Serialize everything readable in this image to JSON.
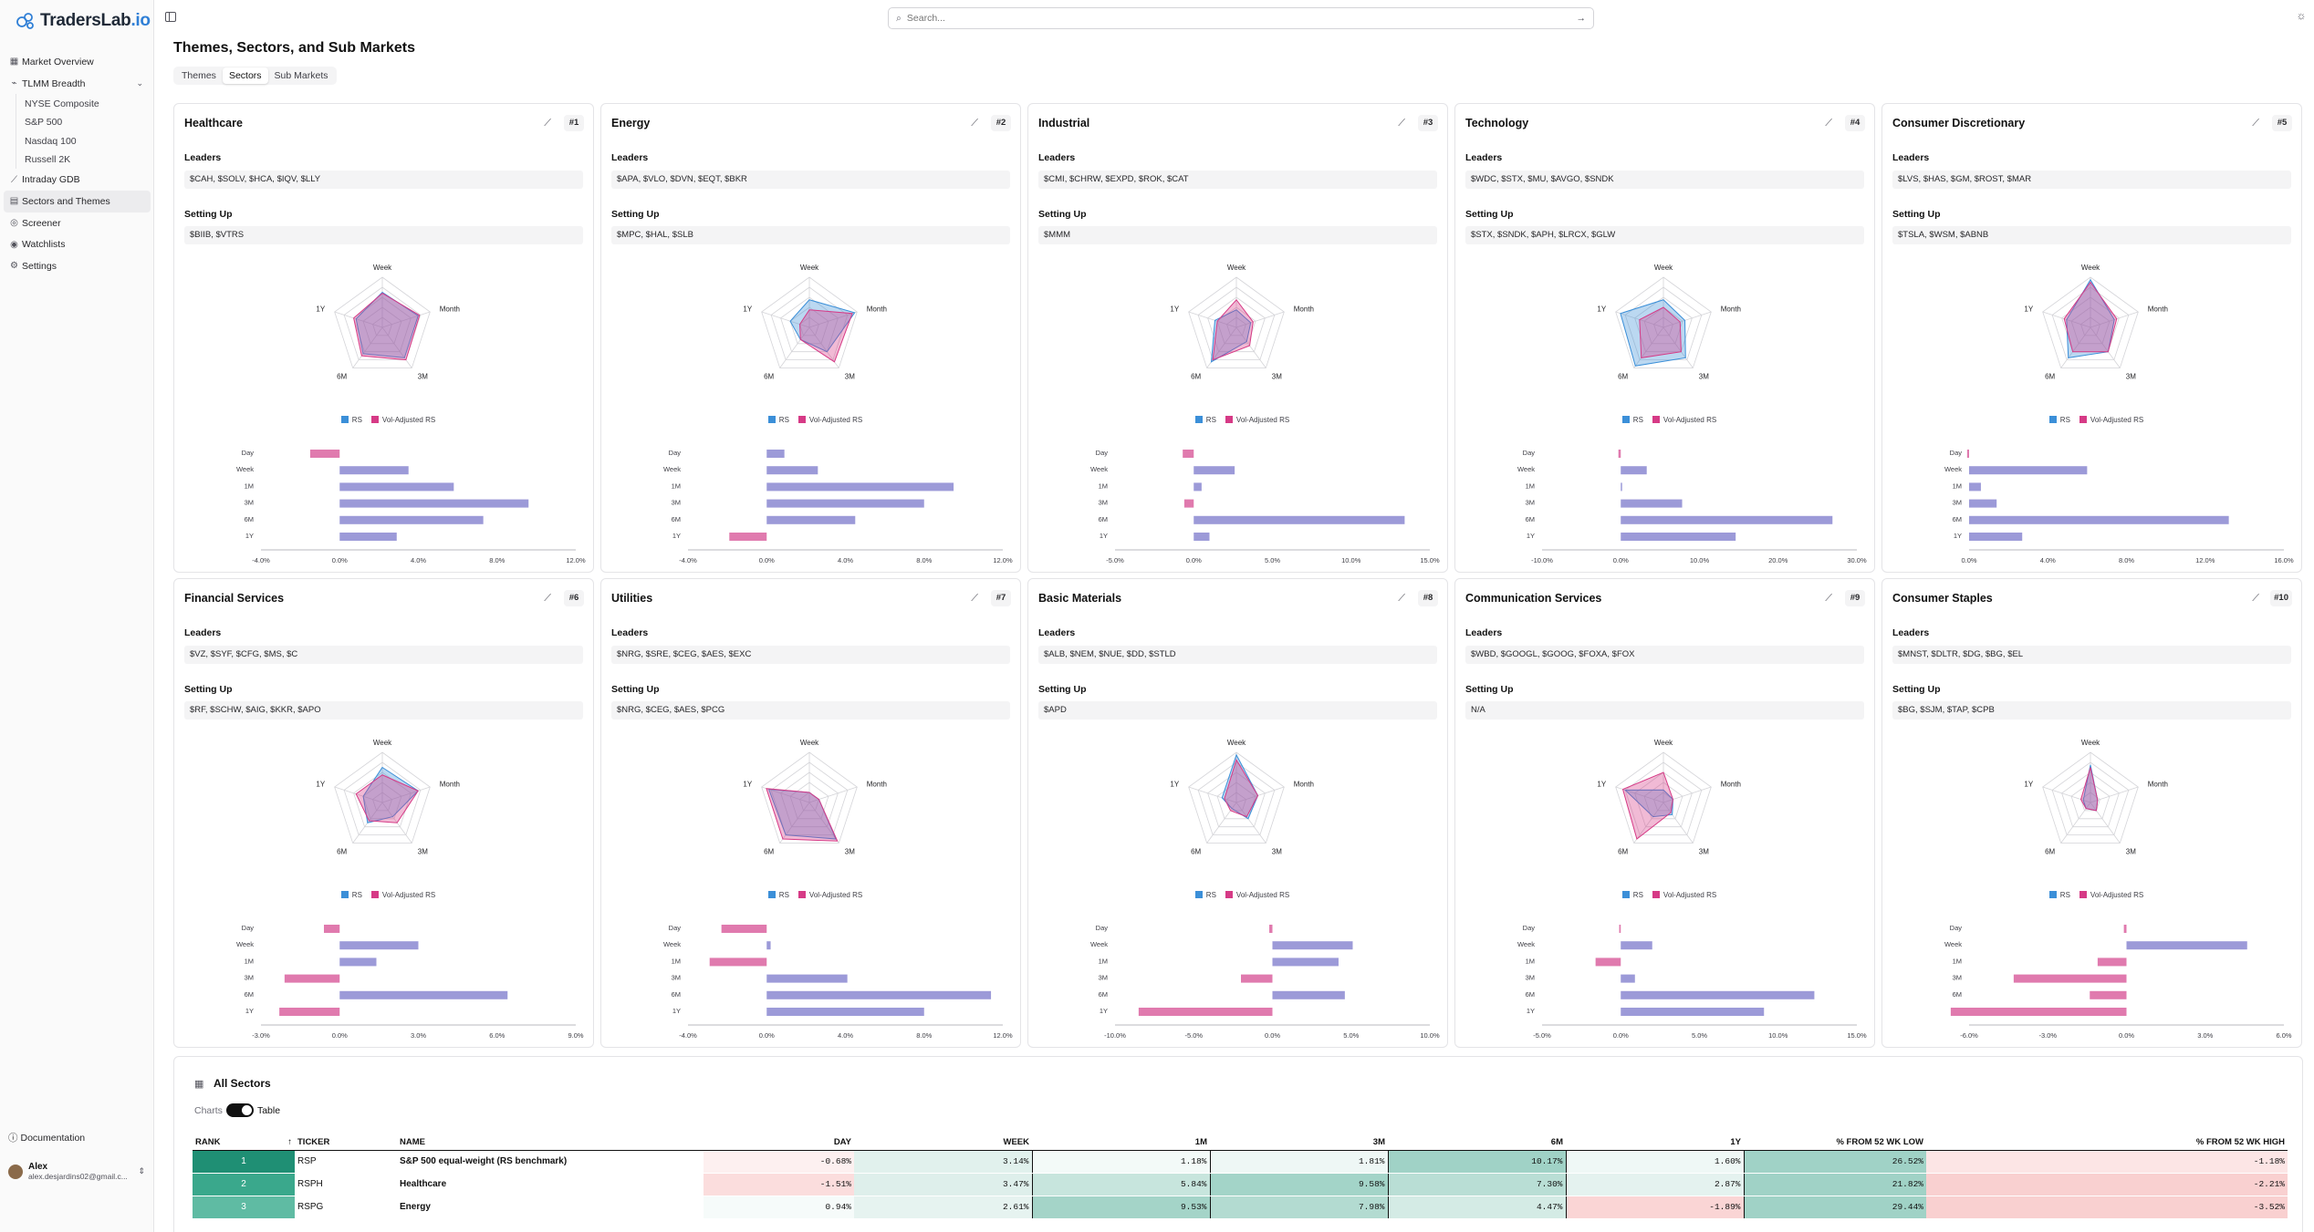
{
  "app": {
    "name_main": "TradersLab",
    "name_tld": ".io"
  },
  "search": {
    "placeholder": "Search..."
  },
  "sidebar": {
    "items": [
      {
        "label": "Market Overview",
        "icon": "grid-icon"
      },
      {
        "label": "TLMM Breadth",
        "icon": "activity-icon"
      },
      {
        "label": "Intraday GDB",
        "icon": "chart-line-icon"
      },
      {
        "label": "Sectors and Themes",
        "icon": "list-icon"
      },
      {
        "label": "Screener",
        "icon": "filter-icon"
      },
      {
        "label": "Watchlists",
        "icon": "eye-icon"
      },
      {
        "label": "Settings",
        "icon": "gear-icon"
      }
    ],
    "sub_items": [
      "NYSE Composite",
      "S&P 500",
      "Nasdaq 100",
      "Russell 2K"
    ],
    "documentation": "Documentation",
    "user": {
      "name": "Alex",
      "email": "alex.desjardins02@gmail.c..."
    }
  },
  "page": {
    "title": "Themes, Sectors, and Sub Markets",
    "tabs": [
      "Themes",
      "Sectors",
      "Sub Markets"
    ],
    "active_tab": "Sectors"
  },
  "card_labels": {
    "leaders": "Leaders",
    "setting_up": "Setting Up",
    "legend_rs": "RS",
    "legend_vol": "Vol-Adjusted RS",
    "axes": [
      "Week",
      "Month",
      "3M",
      "6M",
      "1Y"
    ],
    "bar_rows": [
      "Day",
      "Week",
      "1M",
      "3M",
      "6M",
      "1Y"
    ]
  },
  "colors": {
    "rs": "#3b8fd8",
    "vol": "#d63a86",
    "bar_pos": "#9c9ad8",
    "bar_neg": "#e07aae"
  },
  "cards": [
    {
      "name": "Healthcare",
      "rank": "#1",
      "leaders": "$CAH, $SOLV, $HCA, $IQV, $LLY",
      "setting_up": "$BIIB, $VTRS",
      "rs": [
        0.7,
        0.75,
        0.75,
        0.65,
        0.55
      ],
      "vol": [
        0.68,
        0.78,
        0.8,
        0.7,
        0.6
      ],
      "bars": [
        -1.5,
        3.5,
        5.8,
        9.6,
        7.3,
        2.9
      ],
      "ticks": [
        "-4.0%",
        "0.0%",
        "4.0%",
        "8.0%",
        "12.0%"
      ],
      "tmin": -4,
      "tmax": 12
    },
    {
      "name": "Energy",
      "rank": "#2",
      "leaders": "$APA, $VLO, $DVN, $EQT, $BKR",
      "setting_up": "$MPC, $HAL, $SLB",
      "rs": [
        0.55,
        0.95,
        0.6,
        0.3,
        0.4
      ],
      "vol": [
        0.35,
        0.9,
        0.85,
        0.3,
        0.2
      ],
      "bars": [
        0.9,
        2.6,
        9.5,
        8.0,
        4.5,
        -1.9
      ],
      "ticks": [
        "-4.0%",
        "0.0%",
        "4.0%",
        "8.0%",
        "12.0%"
      ],
      "tmin": -4,
      "tmax": 12
    },
    {
      "name": "Industrial",
      "rank": "#3",
      "leaders": "$CMI, $CHRW, $EXPD, $ROK, $CAT",
      "setting_up": "$MMM",
      "rs": [
        0.35,
        0.3,
        0.35,
        0.85,
        0.45
      ],
      "vol": [
        0.55,
        0.35,
        0.45,
        0.8,
        0.4
      ],
      "bars": [
        -0.7,
        2.6,
        0.5,
        -0.6,
        13.4,
        1.0
      ],
      "ticks": [
        "-5.0%",
        "0.0%",
        "5.0%",
        "10.0%",
        "15.0%"
      ],
      "tmin": -5,
      "tmax": 15
    },
    {
      "name": "Technology",
      "rank": "#4",
      "leaders": "$WDC, $STX, $MU, $AVGO, $SNDK",
      "setting_up": "$STX, $SNDK, $APH, $LRCX, $GLW",
      "rs": [
        0.55,
        0.45,
        0.75,
        0.95,
        0.9
      ],
      "vol": [
        0.4,
        0.35,
        0.6,
        0.75,
        0.5
      ],
      "bars": [
        -0.3,
        3.3,
        0.1,
        7.8,
        26.9,
        14.6
      ],
      "ticks": [
        "-10.0%",
        "0.0%",
        "10.0%",
        "20.0%",
        "30.0%"
      ],
      "tmin": -10,
      "tmax": 30
    },
    {
      "name": "Consumer Discretionary",
      "rank": "#5",
      "leaders": "$LVS, $HAS, $GM, $ROST, $MAR",
      "setting_up": "$TSLA, $WSM, $ABNB",
      "rs": [
        0.95,
        0.5,
        0.6,
        0.75,
        0.5
      ],
      "vol": [
        0.9,
        0.55,
        0.6,
        0.6,
        0.55
      ],
      "bars": [
        -0.1,
        6.0,
        0.6,
        1.4,
        13.2,
        2.7
      ],
      "ticks": [
        "0.0%",
        "4.0%",
        "8.0%",
        "12.0%",
        "16.0%"
      ],
      "tmin": 0,
      "tmax": 16
    },
    {
      "name": "Financial Services",
      "rank": "#6",
      "leaders": "$VZ, $SYF, $CFG, $MS, $C",
      "setting_up": "$RF, $SCHW, $AIG, $KKR, $APO",
      "rs": [
        0.7,
        0.75,
        0.35,
        0.5,
        0.4
      ],
      "vol": [
        0.55,
        0.75,
        0.5,
        0.45,
        0.55
      ],
      "bars": [
        -0.6,
        3.0,
        1.4,
        -2.1,
        6.4,
        -2.3
      ],
      "ticks": [
        "-3.0%",
        "0.0%",
        "3.0%",
        "6.0%",
        "9.0%"
      ],
      "tmin": -3,
      "tmax": 9
    },
    {
      "name": "Utilities",
      "rank": "#7",
      "leaders": "$NRG, $SRE, $CEG, $AES, $EXC",
      "setting_up": "$NRG, $CEG, $AES, $PCG",
      "rs": [
        0.2,
        0.2,
        0.9,
        0.8,
        0.85
      ],
      "vol": [
        0.2,
        0.2,
        0.95,
        0.9,
        0.9
      ],
      "bars": [
        -2.3,
        0.2,
        -2.9,
        4.1,
        11.4,
        8.0
      ],
      "ticks": [
        "-4.0%",
        "0.0%",
        "4.0%",
        "8.0%",
        "12.0%"
      ],
      "tmin": -4,
      "tmax": 12
    },
    {
      "name": "Basic Materials",
      "rank": "#8",
      "leaders": "$ALB, $NEM, $NUE, $DD, $STLD",
      "setting_up": "$APD",
      "rs": [
        0.95,
        0.45,
        0.4,
        0.15,
        0.3
      ],
      "vol": [
        0.85,
        0.45,
        0.35,
        0.2,
        0.25
      ],
      "bars": [
        -0.2,
        5.1,
        4.2,
        -2.0,
        4.6,
        -8.5
      ],
      "ticks": [
        "-10.0%",
        "-5.0%",
        "0.0%",
        "5.0%",
        "10.0%"
      ],
      "tmin": -10,
      "tmax": 10
    },
    {
      "name": "Communication Services",
      "rank": "#9",
      "leaders": "$WBD, $GOOGL, $GOOG, $FOXA, $FOX",
      "setting_up": "N/A",
      "rs": [
        0.25,
        0.2,
        0.3,
        0.35,
        0.8
      ],
      "vol": [
        0.6,
        0.2,
        0.25,
        0.9,
        0.85
      ],
      "bars": [
        -0.1,
        2.0,
        -1.6,
        0.9,
        12.3,
        9.1
      ],
      "ticks": [
        "-5.0%",
        "0.0%",
        "5.0%",
        "10.0%",
        "15.0%"
      ],
      "tmin": -5,
      "tmax": 15
    },
    {
      "name": "Consumer Staples",
      "rank": "#10",
      "leaders": "$MNST, $DLTR, $DG, $BG, $EL",
      "setting_up": "$BG, $SJM, $TAP, $CPB",
      "rs": [
        0.75,
        0.15,
        0.2,
        0.15,
        0.15
      ],
      "vol": [
        0.7,
        0.15,
        0.2,
        0.15,
        0.2
      ],
      "bars": [
        -0.1,
        4.6,
        -1.1,
        -4.3,
        -1.4,
        -6.7
      ],
      "ticks": [
        "-6.0%",
        "-3.0%",
        "0.0%",
        "3.0%",
        "6.0%"
      ],
      "tmin": -6,
      "tmax": 6
    }
  ],
  "all_sectors": {
    "title": "All Sectors",
    "toggle_left": "Charts",
    "toggle_right": "Table",
    "columns": [
      "RANK",
      "TICKER",
      "NAME",
      "DAY",
      "WEEK",
      "1M",
      "3M",
      "6M",
      "1Y",
      "% FROM 52 WK LOW",
      "% FROM 52 WK HIGH"
    ],
    "rows": [
      {
        "rank": "1",
        "ticker": "RSP",
        "name": "S&P 500 equal-weight (RS benchmark)",
        "day": "-0.68%",
        "week": "3.14%",
        "m1": "1.18%",
        "m3": "1.81%",
        "m6": "10.17%",
        "y1": "1.60%",
        "low": "26.52%",
        "high": "-1.18%"
      },
      {
        "rank": "2",
        "ticker": "RSPH",
        "name": "Healthcare",
        "day": "-1.51%",
        "week": "3.47%",
        "m1": "5.84%",
        "m3": "9.58%",
        "m6": "7.30%",
        "y1": "2.87%",
        "low": "21.82%",
        "high": "-2.21%"
      },
      {
        "rank": "3",
        "ticker": "RSPG",
        "name": "Energy",
        "day": "0.94%",
        "week": "2.61%",
        "m1": "9.53%",
        "m3": "7.98%",
        "m6": "4.47%",
        "y1": "-1.89%",
        "low": "29.44%",
        "high": "-3.52%"
      }
    ]
  }
}
